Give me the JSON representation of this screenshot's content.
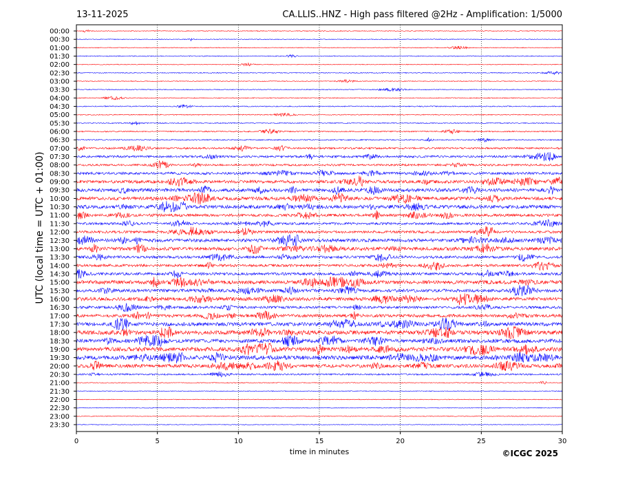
{
  "header": {
    "date": "13-11-2025",
    "title": "CA.LLIS..HNZ - High pass filtered @2Hz - Amplification: 1/5000"
  },
  "footer": {
    "copyright": "©ICGC 2025"
  },
  "chart_data": {
    "type": "line",
    "xlabel": "time in minutes",
    "ylabel": "UTC (local time = UTC + 01:00)",
    "xlim": [
      0,
      30
    ],
    "x_ticks": [
      "0",
      "5",
      "10",
      "15",
      "20",
      "25",
      "30"
    ],
    "row_labels": [
      "00:00",
      "00:30",
      "01:00",
      "01:30",
      "02:00",
      "02:30",
      "03:00",
      "03:30",
      "04:00",
      "04:30",
      "05:00",
      "05:30",
      "06:00",
      "06:30",
      "07:00",
      "07:30",
      "08:00",
      "08:30",
      "09:00",
      "09:30",
      "10:00",
      "10:30",
      "11:00",
      "11:30",
      "12:00",
      "12:30",
      "13:00",
      "13:30",
      "14:00",
      "14:30",
      "15:00",
      "15:30",
      "16:00",
      "16:30",
      "17:00",
      "17:30",
      "18:00",
      "18:30",
      "19:00",
      "19:30",
      "20:00",
      "20:30",
      "21:00",
      "21:30",
      "22:00",
      "22:30",
      "23:00",
      "23:30"
    ],
    "trace_colors": [
      "#ff0000",
      "#0000ff"
    ],
    "activity_levels": [
      0.05,
      0.05,
      0.05,
      0.08,
      0.05,
      0.08,
      0.06,
      0.08,
      0.08,
      0.12,
      0.1,
      0.12,
      0.18,
      0.15,
      0.35,
      0.45,
      0.4,
      0.55,
      0.7,
      0.8,
      0.75,
      0.8,
      0.6,
      0.5,
      0.55,
      0.75,
      0.8,
      0.6,
      0.55,
      0.6,
      0.85,
      0.7,
      0.8,
      0.55,
      0.7,
      0.85,
      0.95,
      0.85,
      1.0,
      1.0,
      0.8,
      0.3,
      0.05,
      0.04,
      0.04,
      0.04,
      0.03,
      0.03
    ],
    "grid": true,
    "vertical_grid_style": "dotted"
  }
}
